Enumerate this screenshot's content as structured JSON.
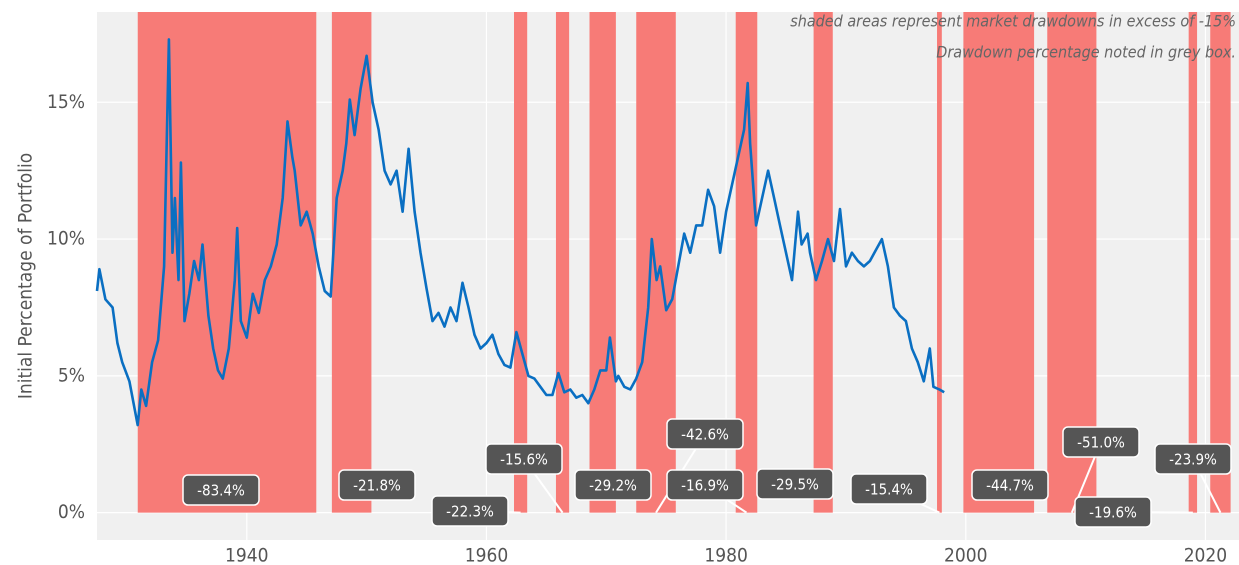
{
  "chart_data": {
    "type": "line",
    "annotations": [
      "shaded areas represent market drawdowns in excess of -15%",
      "Drawdown percentage noted in grey box."
    ],
    "ylabel": "Initial Percentage of Portfolio",
    "xlim": [
      1927.5,
      2022.8
    ],
    "ylim": [
      -1,
      18.3
    ],
    "xticks": [
      1940,
      1960,
      1980,
      2000,
      2020
    ],
    "yticks": [
      {
        "value": 0,
        "label": "0%"
      },
      {
        "value": 5,
        "label": "5%"
      },
      {
        "value": 10,
        "label": "10%"
      },
      {
        "value": 15,
        "label": "15%"
      }
    ],
    "grid": true,
    "x": [
      1927.5,
      1927.7,
      1928.2,
      1928.8,
      1929.2,
      1929.6,
      1930.2,
      1930.9,
      1931.2,
      1931.6,
      1932.1,
      1932.6,
      1933.1,
      1933.5,
      1933.8,
      1934,
      1934.3,
      1934.5,
      1934.8,
      1935.2,
      1935.6,
      1936,
      1936.3,
      1936.8,
      1937.2,
      1937.6,
      1938,
      1938.5,
      1939,
      1939.2,
      1939.5,
      1940,
      1940.5,
      1941,
      1941.5,
      1942,
      1942.5,
      1943,
      1943.4,
      1943.8,
      1944,
      1944.5,
      1945,
      1945.5,
      1946,
      1946.5,
      1947,
      1947.5,
      1948,
      1948.3,
      1948.6,
      1949,
      1949.5,
      1950,
      1950.5,
      1951,
      1951.5,
      1952,
      1952.5,
      1953,
      1953.5,
      1954,
      1954.5,
      1955,
      1955.5,
      1956,
      1956.5,
      1957,
      1957.5,
      1958,
      1958.5,
      1959,
      1959.5,
      1960,
      1960.5,
      1961,
      1961.5,
      1962,
      1962.5,
      1963,
      1963.5,
      1964,
      1964.5,
      1965,
      1965.5,
      1966,
      1966.5,
      1967,
      1967.5,
      1968,
      1968.5,
      1969,
      1969.5,
      1970,
      1970.3,
      1970.8,
      1971,
      1971.5,
      1972,
      1972.5,
      1973,
      1973.5,
      1973.8,
      1974.2,
      1974.5,
      1975,
      1975.5,
      1976,
      1976.5,
      1977,
      1977.5,
      1978,
      1978.5,
      1979,
      1979.5,
      1980,
      1980.5,
      1981,
      1981.5,
      1981.8,
      1982,
      1982.5,
      1983,
      1983.5,
      1984,
      1984.5,
      1985,
      1985.5,
      1986,
      1986.3,
      1986.8,
      1987,
      1987.5,
      1988,
      1988.5,
      1989,
      1989.5,
      1990,
      1990.5,
      1991,
      1991.5,
      1992,
      1992.5,
      1993,
      1993.5,
      1994,
      1994.5,
      1995,
      1995.5,
      1996,
      1996.5,
      1997,
      1997.3,
      1997.8,
      1998.2
    ],
    "series": [
      {
        "color": "#0a6fc2",
        "values": [
          8.1,
          8.9,
          7.8,
          7.5,
          6.2,
          5.5,
          4.8,
          3.2,
          4.5,
          3.9,
          5.5,
          6.3,
          9,
          17.3,
          9.5,
          11.5,
          8.5,
          12.8,
          7,
          8,
          9.2,
          8.5,
          9.8,
          7.2,
          6,
          5.2,
          4.9,
          6,
          8.5,
          10.4,
          7,
          6.4,
          8,
          7.3,
          8.5,
          9,
          9.8,
          11.5,
          14.3,
          13,
          12.5,
          10.5,
          11,
          10.2,
          9,
          8.1,
          7.9,
          11.5,
          12.5,
          13.5,
          15.1,
          13.8,
          15.5,
          16.7,
          15,
          14,
          12.5,
          12,
          12.5,
          11,
          13.3,
          11,
          9.5,
          8.2,
          7,
          7.3,
          6.8,
          7.5,
          7,
          8.4,
          7.5,
          6.5,
          6,
          6.2,
          6.5,
          5.8,
          5.4,
          5.3,
          6.6,
          5.8,
          5,
          4.9,
          4.6,
          4.3,
          4.3,
          5.1,
          4.4,
          4.5,
          4.2,
          4.3,
          4,
          4.5,
          5.2,
          5.2,
          6.4,
          4.8,
          5,
          4.6,
          4.5,
          4.9,
          5.5,
          7.5,
          10,
          8.5,
          9,
          7.4,
          7.8,
          9,
          10.2,
          9.5,
          10.5,
          10.5,
          11.8,
          11.2,
          9.5,
          11,
          12,
          13,
          14,
          15.7,
          13.5,
          10.5,
          11.5,
          12.5,
          11.5,
          10.5,
          9.5,
          8.5,
          11,
          9.8,
          10.2,
          9.5,
          8.5,
          9.2,
          10,
          9.2,
          11.1,
          9,
          9.5,
          9.2,
          9,
          9.2,
          9.6,
          10,
          9,
          7.5,
          7.2,
          7,
          6,
          5.5,
          4.8,
          6,
          4.6,
          4.5,
          4.4
        ]
      }
    ],
    "shade_color": "#f77b77",
    "drawdowns": [
      {
        "start": 1930.9,
        "end": 1945.8,
        "label": "-83.4%"
      },
      {
        "start": 1947.1,
        "end": 1950.4,
        "label": "-21.8%"
      },
      {
        "start": 1962.3,
        "end": 1963.4,
        "label": "-22.3%"
      },
      {
        "start": 1965.8,
        "end": 1966.9,
        "label": "-15.6%"
      },
      {
        "start": 1968.6,
        "end": 1970.8,
        "label": "-29.2%"
      },
      {
        "start": 1972.5,
        "end": 1975.8,
        "label": "-42.6%"
      },
      {
        "start": 1980.8,
        "end": 1982.6,
        "label": "-16.9%"
      },
      {
        "start": 1987.3,
        "end": 1988.9,
        "label": "-29.5%"
      },
      {
        "start": 1997.6,
        "end": 1998.0,
        "label": "-15.4%"
      },
      {
        "start": 1999.8,
        "end": 2005.7,
        "label": "-44.7%"
      },
      {
        "start": 2006.8,
        "end": 2010.9,
        "label": "-51.0%"
      },
      {
        "start": 2018.6,
        "end": 2019.3,
        "label": "-19.6%"
      },
      {
        "start": 2020.4,
        "end": 2022.1,
        "label": "-23.9%"
      }
    ]
  }
}
